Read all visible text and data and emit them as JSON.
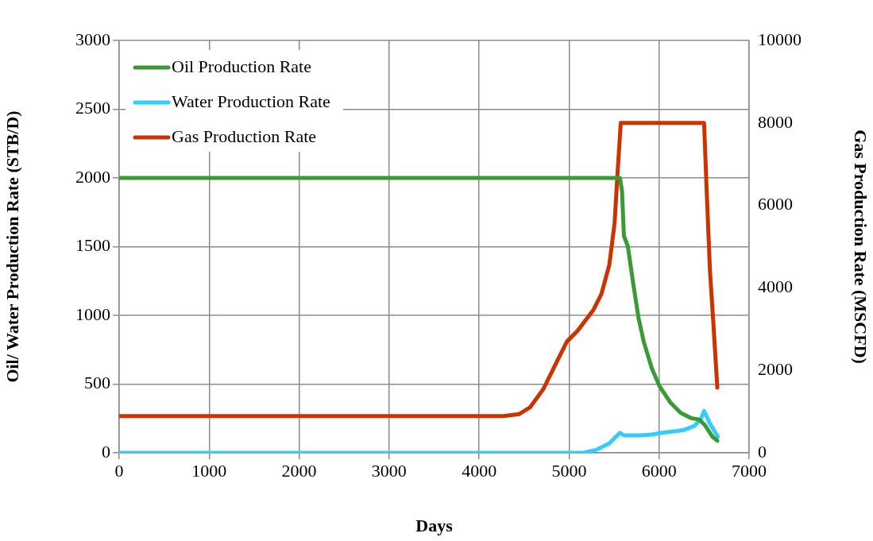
{
  "chart_data": {
    "type": "line",
    "xlabel": "Days",
    "ylabel": "Oil/ Water Production Rate (STB/D)",
    "y2label": "Gas Production Rate (MSCFD)",
    "xlim": [
      0,
      7000
    ],
    "xticks": [
      0,
      1000,
      2000,
      3000,
      4000,
      5000,
      6000,
      7000
    ],
    "ylim": [
      0,
      3000
    ],
    "yticks": [
      0,
      500,
      1000,
      1500,
      2000,
      2500,
      3000
    ],
    "y2lim": [
      0,
      10000
    ],
    "y2ticks": [
      0,
      2000,
      4000,
      6000,
      8000,
      10000
    ],
    "grid": true,
    "legend": "top left",
    "marker": "none",
    "line_style": "solid",
    "series": [
      {
        "name": "Oil Production Rate",
        "color": "#3a9a35",
        "x": [
          0,
          5565,
          5588,
          5609,
          5653,
          5712,
          5771,
          5829,
          5918,
          6006,
          6124,
          6241,
          6359,
          6447,
          6506,
          6594,
          6647
        ],
        "values": [
          2000,
          2000,
          1906,
          1579,
          1502,
          1233,
          983,
          810,
          617,
          483,
          367,
          290,
          252,
          242,
          204,
          117,
          88
        ]
      },
      {
        "name": "Water Production Rate",
        "color": "#33ccff",
        "x": [
          0,
          5153,
          5300,
          5447,
          5565,
          5609,
          5800,
          5918,
          6035,
          6271,
          6388,
          6462,
          6500,
          6565,
          6653
        ],
        "values": [
          0,
          0,
          21,
          69,
          146,
          127,
          127,
          133,
          146,
          165,
          194,
          242,
          304,
          213,
          117
        ]
      },
      {
        "name": "Gas Production Rate",
        "color": "#cc3300",
        "axis": "y2",
        "x": [
          0,
          4270,
          4447,
          4565,
          4712,
          4859,
          4976,
          5094,
          5271,
          5359,
          5447,
          5506,
          5535,
          5574,
          6500,
          6529,
          6565,
          6603,
          6647
        ],
        "values": [
          890,
          890,
          940,
          1100,
          1540,
          2190,
          2700,
          2960,
          3470,
          3850,
          4560,
          5580,
          6670,
          8000,
          8000,
          6350,
          4430,
          3150,
          1580
        ]
      }
    ]
  }
}
